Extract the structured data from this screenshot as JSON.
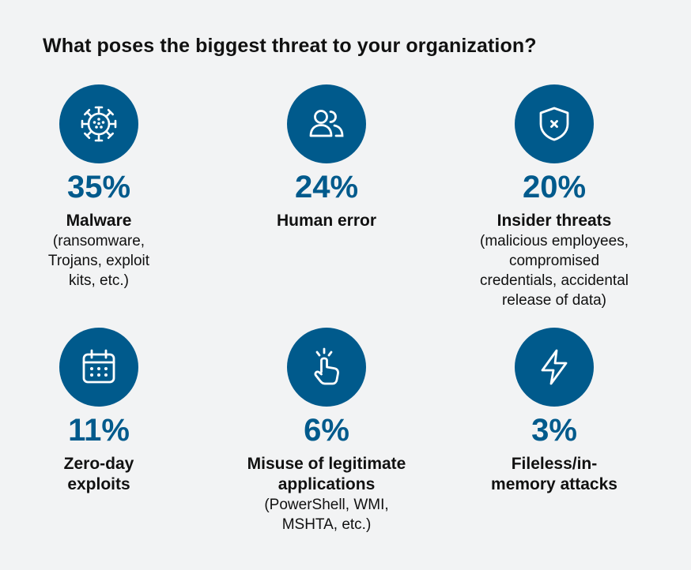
{
  "chart_data": {
    "type": "infographic",
    "title": "What poses the biggest threat to your organization?",
    "accent_color": "#005a8c",
    "items": [
      {
        "value": 35,
        "value_label": "35%",
        "label": "Malware",
        "desc": "(ransomware,\nTrojans, exploit\nkits, etc.)",
        "icon": "virus-icon"
      },
      {
        "value": 24,
        "value_label": "24%",
        "label": "Human error",
        "desc": "",
        "icon": "people-icon"
      },
      {
        "value": 20,
        "value_label": "20%",
        "label": "Insider threats",
        "desc": "(malicious employees,\ncompromised\ncredentials, accidental\nrelease of data)",
        "icon": "shield-x-icon"
      },
      {
        "value": 11,
        "value_label": "11%",
        "label": "Zero-day\nexploits",
        "desc": "",
        "icon": "calendar-icon"
      },
      {
        "value": 6,
        "value_label": "6%",
        "label": "Misuse of legitimate\napplications",
        "desc": "(PowerShell, WMI,\nMSHTA, etc.)",
        "icon": "tap-finger-icon"
      },
      {
        "value": 3,
        "value_label": "3%",
        "label": "Fileless/in-\nmemory attacks",
        "desc": "",
        "icon": "lightning-icon"
      }
    ]
  }
}
